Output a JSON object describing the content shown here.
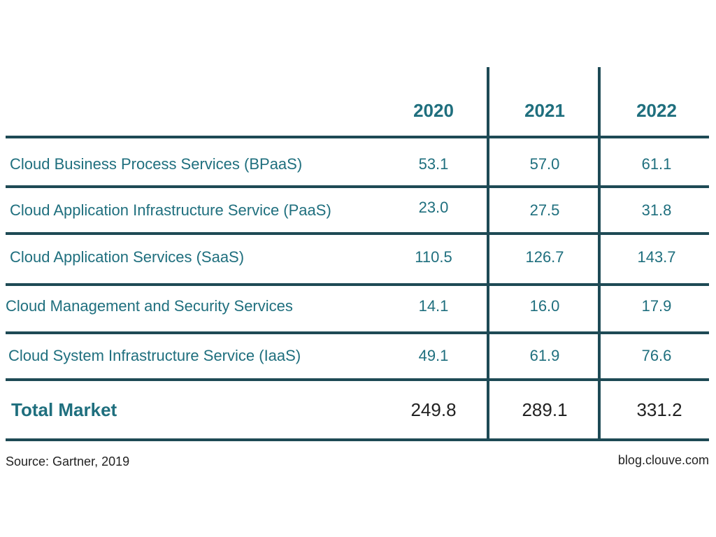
{
  "chart_data": {
    "type": "table",
    "columns": [
      "2020",
      "2021",
      "2022"
    ],
    "rows": [
      {
        "label": "Cloud Business Process Services (BPaaS)",
        "values": [
          "53.1",
          "57.0",
          "61.1"
        ]
      },
      {
        "label": "Cloud Application Infrastructure Service (PaaS)",
        "values": [
          "23.0",
          "27.5",
          "31.8"
        ]
      },
      {
        "label": "Cloud Application Services (SaaS)",
        "values": [
          "110.5",
          "126.7",
          "143.7"
        ]
      },
      {
        "label": "Cloud Management and Security Services",
        "values": [
          "14.1",
          "16.0",
          "17.9"
        ]
      },
      {
        "label": "Cloud System Infrastructure Service (IaaS)",
        "values": [
          "49.1",
          "61.9",
          "76.6"
        ]
      }
    ],
    "total": {
      "label": "Total Market",
      "values": [
        "249.8",
        "289.1",
        "331.2"
      ]
    }
  },
  "footer": {
    "source": "Source: Gartner, 2019",
    "site": "blog.clouve.com"
  },
  "colors": {
    "accent": "#1f6f7e",
    "line": "#1e4a55"
  }
}
